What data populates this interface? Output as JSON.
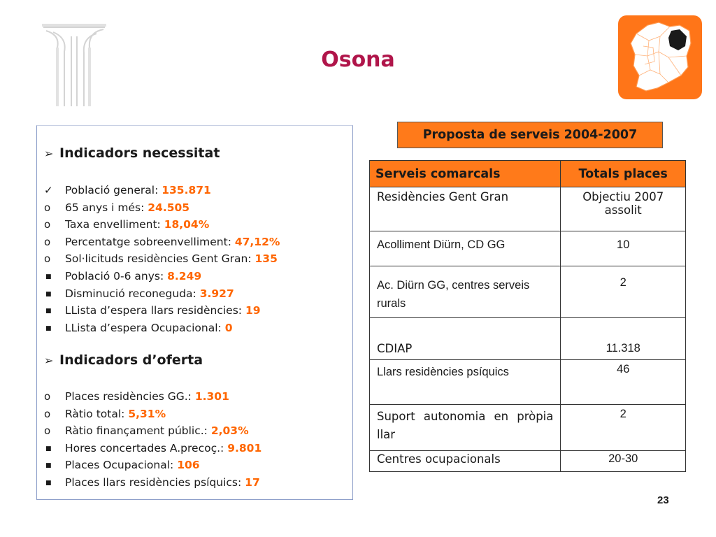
{
  "header": {
    "title": "Osona"
  },
  "indicadors_necessitat": {
    "heading": "Indicadors necessitat",
    "items": [
      {
        "marker": "check",
        "label": "Població general: ",
        "value": "135.871"
      },
      {
        "marker": "circle",
        "label": "65 anys i més: ",
        "value": "24.505"
      },
      {
        "marker": "circle",
        "label": "Taxa envelliment: ",
        "value": "18,04%"
      },
      {
        "marker": "circle",
        "label": "Percentatge sobreenvelliment: ",
        "value": "47,12%"
      },
      {
        "marker": "circle",
        "label": "Sol·licituds residències Gent Gran: ",
        "value": "135"
      },
      {
        "marker": "square",
        "label": "Població 0-6 anys: ",
        "value": "8.249"
      },
      {
        "marker": "square",
        "label": "Disminució reconeguda: ",
        "value": "3.927"
      },
      {
        "marker": "square",
        "label": "LLista d’espera llars residències: ",
        "value": "19"
      },
      {
        "marker": "square",
        "label": "LLista d’espera Ocupacional: ",
        "value": "0"
      }
    ]
  },
  "indicadors_oferta": {
    "heading": "Indicadors d’oferta",
    "items": [
      {
        "marker": "circle",
        "label": "Places residències GG.: ",
        "value": "1.301"
      },
      {
        "marker": "circle",
        "label": "Ràtio total: ",
        "value": "5,31%"
      },
      {
        "marker": "circle",
        "label": "Ràtio finançament públic.: ",
        "value": "2,03%"
      },
      {
        "marker": "square",
        "label": "Hores concertades A.precoç.: ",
        "value": "9.801"
      },
      {
        "marker": "square",
        "label": "Places Ocupacional: ",
        "value": "106"
      },
      {
        "marker": "square",
        "label": "Places llars residències psíquics: ",
        "value": "17"
      }
    ]
  },
  "proposta": {
    "label": "Proposta de serveis 2004-2007"
  },
  "table": {
    "headers": [
      "Serveis comarcals",
      "Totals places"
    ],
    "rows": [
      {
        "service": "Residències Gent Gran",
        "places": "Objectiu 2007 assolit"
      },
      {
        "service": "Acolliment Diürn, CD GG",
        "places": "10"
      },
      {
        "service": "Ac. Diürn GG, centres serveis rurals",
        "places": "2"
      },
      {
        "service": "CDIAP",
        "places": "11.318"
      },
      {
        "service": "Llars residències psíquics",
        "places": "46"
      },
      {
        "service": "Suport autonomia en pròpia llar",
        "places": "2"
      },
      {
        "service": "Centres ocupacionals",
        "places": "20-30"
      }
    ]
  },
  "footer": {
    "page_number": "23"
  },
  "colors": {
    "title": "#b0154a",
    "accent_orange": "#ff7a1a",
    "value_orange": "#ff6600",
    "box_border": "#8a9cc8"
  },
  "icons": {
    "logo": "columns-logo",
    "map": "catalonia-map-icon",
    "section_bullet": "arrow-bullet-icon",
    "check_bullet": "check-icon",
    "circle_bullet": "circle-icon",
    "square_bullet": "square-icon"
  }
}
